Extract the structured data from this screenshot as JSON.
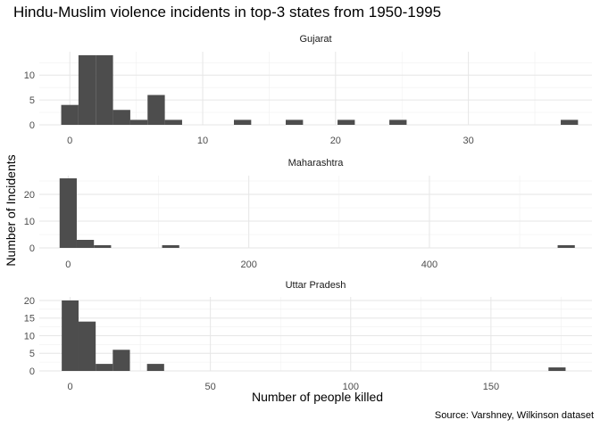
{
  "chart_data": {
    "type": "bar",
    "title": "Hindu-Muslim violence incidents in top-3 states from 1950-1995",
    "xlabel": "Number of people killed",
    "ylabel": "Number of Incidents",
    "caption": "Source: Varshney, Wilkinson dataset",
    "grid": true,
    "bar_color": "#4d4d4d",
    "facets": [
      {
        "name": "Gujarat",
        "xlim": [
          -2.3,
          39.3
        ],
        "ylim": [
          0,
          14.7
        ],
        "xticks": [
          {
            "value": 0,
            "label": "0"
          },
          {
            "value": 10,
            "label": "10"
          },
          {
            "value": 20,
            "label": "20"
          },
          {
            "value": 30,
            "label": "30"
          }
        ],
        "yticks": [
          {
            "value": 0,
            "label": "0"
          },
          {
            "value": 5,
            "label": "5"
          },
          {
            "value": 10,
            "label": "10"
          }
        ],
        "bins": [
          {
            "x0": -0.65,
            "x1": 0.65,
            "count": 4
          },
          {
            "x0": 0.65,
            "x1": 1.95,
            "count": 14
          },
          {
            "x0": 1.95,
            "x1": 3.25,
            "count": 14
          },
          {
            "x0": 3.25,
            "x1": 4.55,
            "count": 3
          },
          {
            "x0": 4.55,
            "x1": 5.85,
            "count": 1
          },
          {
            "x0": 5.85,
            "x1": 7.15,
            "count": 6
          },
          {
            "x0": 7.15,
            "x1": 8.45,
            "count": 1
          },
          {
            "x0": 12.35,
            "x1": 13.65,
            "count": 1
          },
          {
            "x0": 16.25,
            "x1": 17.55,
            "count": 1
          },
          {
            "x0": 20.15,
            "x1": 21.45,
            "count": 1
          },
          {
            "x0": 24.05,
            "x1": 25.35,
            "count": 1
          },
          {
            "x0": 36.95,
            "x1": 38.25,
            "count": 1
          }
        ]
      },
      {
        "name": "Maharashtra",
        "xlim": [
          -32,
          580
        ],
        "ylim": [
          0,
          27
        ],
        "xticks": [
          {
            "value": 0,
            "label": "0"
          },
          {
            "value": 200,
            "label": "200"
          },
          {
            "value": 400,
            "label": "400"
          }
        ],
        "yticks": [
          {
            "value": 0,
            "label": "0"
          },
          {
            "value": 10,
            "label": "10"
          },
          {
            "value": 20,
            "label": "20"
          }
        ],
        "bins": [
          {
            "x0": -9.5,
            "x1": 9.5,
            "count": 26
          },
          {
            "x0": 9.5,
            "x1": 28.5,
            "count": 3
          },
          {
            "x0": 28.5,
            "x1": 47.5,
            "count": 1
          },
          {
            "x0": 104,
            "x1": 123,
            "count": 1
          },
          {
            "x0": 542,
            "x1": 561,
            "count": 1
          }
        ]
      },
      {
        "name": "Uttar Pradesh",
        "xlim": [
          -11,
          186
        ],
        "ylim": [
          0,
          21
        ],
        "xticks": [
          {
            "value": 0,
            "label": "0"
          },
          {
            "value": 50,
            "label": "50"
          },
          {
            "value": 100,
            "label": "100"
          },
          {
            "value": 150,
            "label": "150"
          }
        ],
        "yticks": [
          {
            "value": 0,
            "label": "0"
          },
          {
            "value": 5,
            "label": "5"
          },
          {
            "value": 10,
            "label": "10"
          },
          {
            "value": 15,
            "label": "15"
          },
          {
            "value": 20,
            "label": "20"
          }
        ],
        "bins": [
          {
            "x0": -3,
            "x1": 3,
            "count": 20
          },
          {
            "x0": 3,
            "x1": 9.1,
            "count": 14
          },
          {
            "x0": 9.1,
            "x1": 15.2,
            "count": 2
          },
          {
            "x0": 15.2,
            "x1": 21.3,
            "count": 6
          },
          {
            "x0": 27.4,
            "x1": 33.5,
            "count": 2
          },
          {
            "x0": 170.5,
            "x1": 176.6,
            "count": 1
          }
        ]
      }
    ]
  }
}
